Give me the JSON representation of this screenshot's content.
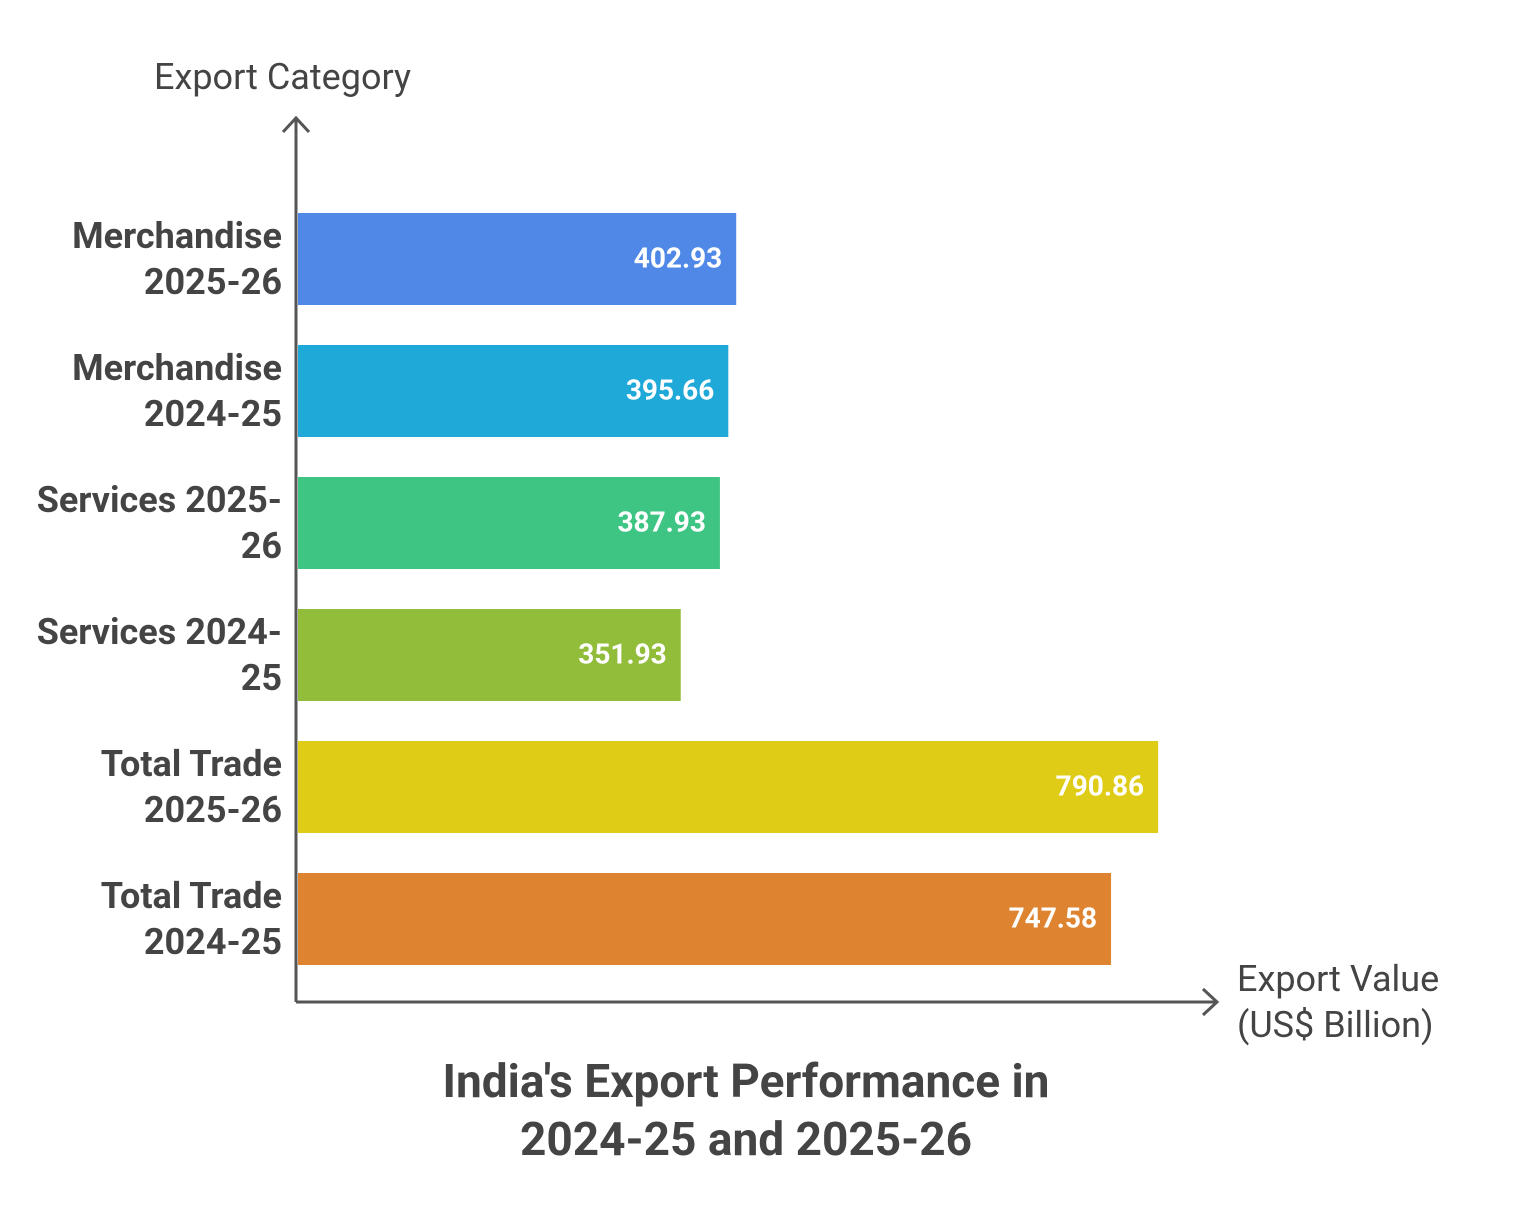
{
  "chart_data": {
    "type": "bar",
    "orientation": "horizontal",
    "title": "India's Export Performance in 2024-25 and 2025-26",
    "x_label": "Export Value (US$ Billion)",
    "y_label": "Export Category",
    "categories": [
      "Merchandise 2025-26",
      "Merchandise 2024-25",
      "Services 2025-26",
      "Services 2024-25",
      "Total Trade 2025-26",
      "Total Trade 2024-25"
    ],
    "values": [
      402.93,
      395.66,
      387.93,
      351.93,
      790.86,
      747.58
    ],
    "colors": [
      "#4f88e6",
      "#1fa9d9",
      "#3ec583",
      "#92bd3a",
      "#dfcc16",
      "#de8330"
    ],
    "xlim": [
      0,
      845
    ]
  }
}
